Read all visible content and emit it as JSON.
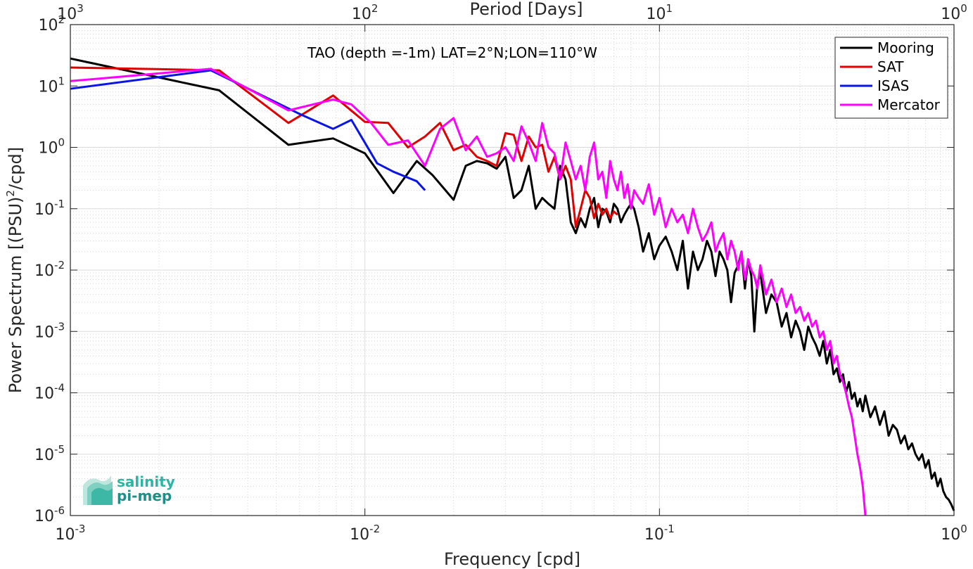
{
  "chart_data": {
    "type": "line",
    "title": "TAO (depth =-1m) LAT=2°N;LON=110°W",
    "xlabel": "Frequency [cpd]",
    "ylabel_main": "Power Spectrum [(PSU)",
    "ylabel_sup": "2",
    "ylabel_tail": "/cpd]",
    "top_xlabel": "Period [Days]",
    "x_scale": "log",
    "y_scale": "log",
    "xlim": [
      0.001,
      1
    ],
    "ylim": [
      1e-06,
      100
    ],
    "grid": true,
    "legend_position": "top-right",
    "x_ticks": [
      {
        "value": 0.001,
        "base": "10",
        "exp": "-3"
      },
      {
        "value": 0.01,
        "base": "10",
        "exp": "-2"
      },
      {
        "value": 0.1,
        "base": "10",
        "exp": "-1"
      },
      {
        "value": 1,
        "base": "10",
        "exp": "0"
      }
    ],
    "top_ticks": [
      {
        "value": 0.001,
        "base": "10",
        "exp": "3"
      },
      {
        "value": 0.01,
        "base": "10",
        "exp": "2"
      },
      {
        "value": 0.1,
        "base": "10",
        "exp": "1"
      },
      {
        "value": 1,
        "base": "10",
        "exp": "0"
      }
    ],
    "y_ticks": [
      {
        "value": 100,
        "base": "10",
        "exp": "2"
      },
      {
        "value": 10,
        "base": "10",
        "exp": "1"
      },
      {
        "value": 1,
        "base": "10",
        "exp": "0"
      },
      {
        "value": 0.1,
        "base": "10",
        "exp": "-1"
      },
      {
        "value": 0.01,
        "base": "10",
        "exp": "-2"
      },
      {
        "value": 0.001,
        "base": "10",
        "exp": "-3"
      },
      {
        "value": 0.0001,
        "base": "10",
        "exp": "-4"
      },
      {
        "value": 1e-05,
        "base": "10",
        "exp": "-5"
      },
      {
        "value": 1e-06,
        "base": "10",
        "exp": "-6"
      }
    ],
    "series": [
      {
        "name": "Mooring",
        "color": "#000000",
        "width": 3,
        "x": [
          0.001,
          0.0032,
          0.0055,
          0.0078,
          0.01,
          0.0125,
          0.015,
          0.017,
          0.02,
          0.022,
          0.024,
          0.026,
          0.028,
          0.03,
          0.032,
          0.034,
          0.036,
          0.038,
          0.04,
          0.042,
          0.044,
          0.046,
          0.048,
          0.05,
          0.052,
          0.054,
          0.056,
          0.058,
          0.06,
          0.062,
          0.064,
          0.066,
          0.068,
          0.07,
          0.072,
          0.074,
          0.076,
          0.078,
          0.08,
          0.082,
          0.085,
          0.088,
          0.092,
          0.096,
          0.1,
          0.105,
          0.11,
          0.115,
          0.12,
          0.125,
          0.13,
          0.135,
          0.14,
          0.145,
          0.15,
          0.155,
          0.16,
          0.165,
          0.17,
          0.175,
          0.18,
          0.185,
          0.19,
          0.195,
          0.2,
          0.205,
          0.21,
          0.215,
          0.22,
          0.23,
          0.24,
          0.25,
          0.26,
          0.27,
          0.28,
          0.29,
          0.3,
          0.31,
          0.32,
          0.33,
          0.34,
          0.35,
          0.36,
          0.37,
          0.38,
          0.39,
          0.4,
          0.41,
          0.42,
          0.43,
          0.44,
          0.45,
          0.46,
          0.47,
          0.48,
          0.49,
          0.5,
          0.52,
          0.54,
          0.56,
          0.58,
          0.6,
          0.62,
          0.64,
          0.66,
          0.68,
          0.7,
          0.72,
          0.74,
          0.76,
          0.78,
          0.8,
          0.82,
          0.84,
          0.86,
          0.88,
          0.9,
          0.92,
          0.94,
          0.96,
          0.98,
          1.0
        ],
        "y": [
          28,
          8.5,
          1.1,
          1.4,
          0.8,
          0.18,
          0.6,
          0.35,
          0.14,
          0.5,
          0.6,
          0.55,
          0.45,
          0.7,
          0.15,
          0.2,
          0.5,
          0.1,
          0.15,
          0.12,
          0.1,
          0.5,
          0.3,
          0.06,
          0.04,
          0.07,
          0.05,
          0.1,
          0.15,
          0.05,
          0.1,
          0.09,
          0.06,
          0.12,
          0.1,
          0.06,
          0.08,
          0.1,
          0.12,
          0.1,
          0.05,
          0.02,
          0.04,
          0.015,
          0.025,
          0.035,
          0.02,
          0.01,
          0.03,
          0.005,
          0.02,
          0.01,
          0.015,
          0.03,
          0.02,
          0.008,
          0.02,
          0.015,
          0.01,
          0.003,
          0.009,
          0.012,
          0.02,
          0.005,
          0.015,
          0.008,
          0.001,
          0.006,
          0.009,
          0.002,
          0.004,
          0.003,
          0.0012,
          0.002,
          0.0008,
          0.0015,
          0.001,
          0.0005,
          0.0012,
          0.0008,
          0.0006,
          0.0004,
          0.0007,
          0.0003,
          0.0005,
          0.0002,
          0.00025,
          0.00015,
          0.0002,
          0.0001,
          0.00015,
          8e-05,
          0.0001,
          6e-05,
          8e-05,
          5e-05,
          9e-05,
          4e-05,
          6e-05,
          3e-05,
          5e-05,
          2e-05,
          3e-05,
          2.5e-05,
          1.5e-05,
          2e-05,
          1.2e-05,
          1.5e-05,
          1e-05,
          8e-06,
          1e-05,
          6e-06,
          8e-06,
          4e-06,
          5e-06,
          3e-06,
          4e-06,
          2.5e-06,
          2e-06,
          1.8e-06,
          1.5e-06,
          1.2e-06
        ]
      },
      {
        "name": "SAT",
        "color": "#e00000",
        "width": 3,
        "x": [
          0.001,
          0.0032,
          0.0055,
          0.0078,
          0.01,
          0.012,
          0.014,
          0.016,
          0.018,
          0.02,
          0.022,
          0.024,
          0.026,
          0.028,
          0.03,
          0.032,
          0.034,
          0.036,
          0.038,
          0.04,
          0.042,
          0.044,
          0.046,
          0.048,
          0.05,
          0.052,
          0.054,
          0.056,
          0.058,
          0.06,
          0.062,
          0.064,
          0.066,
          0.068,
          0.07,
          0.072
        ],
        "y": [
          20,
          18,
          2.5,
          7,
          2.6,
          2.5,
          1.0,
          1.5,
          2.5,
          0.9,
          1.1,
          0.7,
          0.6,
          0.5,
          1.7,
          1.6,
          0.6,
          1.5,
          1.0,
          1.1,
          0.4,
          0.7,
          0.3,
          0.5,
          0.3,
          0.05,
          0.1,
          0.2,
          0.15,
          0.07,
          0.12,
          0.08,
          0.1,
          0.07,
          0.09,
          0.08
        ]
      },
      {
        "name": "ISAS",
        "color": "#0a14e6",
        "width": 3,
        "x": [
          0.001,
          0.003,
          0.006,
          0.0078,
          0.009,
          0.011,
          0.0125,
          0.015,
          0.016
        ],
        "y": [
          9,
          18,
          3.5,
          2.0,
          2.8,
          0.55,
          0.4,
          0.28,
          0.2
        ]
      },
      {
        "name": "Mercator",
        "color": "#ff00ff",
        "width": 3,
        "x": [
          0.001,
          0.003,
          0.0055,
          0.0078,
          0.009,
          0.0105,
          0.012,
          0.014,
          0.016,
          0.018,
          0.02,
          0.022,
          0.024,
          0.026,
          0.028,
          0.03,
          0.032,
          0.034,
          0.036,
          0.038,
          0.04,
          0.042,
          0.044,
          0.046,
          0.048,
          0.05,
          0.052,
          0.054,
          0.056,
          0.058,
          0.06,
          0.062,
          0.064,
          0.066,
          0.068,
          0.07,
          0.072,
          0.074,
          0.076,
          0.078,
          0.08,
          0.082,
          0.085,
          0.088,
          0.092,
          0.096,
          0.1,
          0.105,
          0.11,
          0.115,
          0.12,
          0.125,
          0.13,
          0.135,
          0.14,
          0.145,
          0.15,
          0.155,
          0.16,
          0.165,
          0.17,
          0.175,
          0.18,
          0.185,
          0.19,
          0.195,
          0.2,
          0.205,
          0.21,
          0.215,
          0.22,
          0.23,
          0.24,
          0.25,
          0.26,
          0.27,
          0.28,
          0.29,
          0.3,
          0.31,
          0.32,
          0.33,
          0.34,
          0.35,
          0.36,
          0.37,
          0.38,
          0.39,
          0.4,
          0.41,
          0.42,
          0.43,
          0.44,
          0.45,
          0.46,
          0.47,
          0.48,
          0.49,
          0.5
        ],
        "y": [
          12,
          19,
          4.0,
          6.0,
          5.0,
          2.5,
          1.1,
          1.3,
          0.5,
          2.0,
          3.0,
          0.9,
          1.5,
          0.7,
          0.8,
          1.0,
          0.6,
          2.2,
          1.2,
          0.6,
          2.5,
          1.0,
          0.8,
          0.3,
          1.2,
          0.6,
          0.3,
          0.5,
          0.2,
          0.7,
          1.2,
          0.3,
          0.4,
          0.15,
          0.6,
          0.3,
          0.2,
          0.4,
          0.15,
          0.25,
          0.1,
          0.2,
          0.15,
          0.12,
          0.25,
          0.08,
          0.15,
          0.05,
          0.1,
          0.06,
          0.08,
          0.04,
          0.1,
          0.05,
          0.03,
          0.04,
          0.06,
          0.02,
          0.03,
          0.04,
          0.015,
          0.03,
          0.02,
          0.01,
          0.02,
          0.007,
          0.015,
          0.01,
          0.008,
          0.005,
          0.012,
          0.004,
          0.007,
          0.003,
          0.005,
          0.0025,
          0.004,
          0.002,
          0.0025,
          0.0015,
          0.002,
          0.0012,
          0.0015,
          0.0008,
          0.001,
          0.0005,
          0.0007,
          0.0003,
          0.0004,
          0.0002,
          0.00015,
          0.0001,
          6e-05,
          4e-05,
          2e-05,
          1e-05,
          6e-06,
          3e-06,
          1e-06
        ]
      }
    ]
  },
  "logo": {
    "line1": "salinity",
    "line2": "pi-mep",
    "color1": "#2bb5a5",
    "color2": "#1e8f86"
  }
}
